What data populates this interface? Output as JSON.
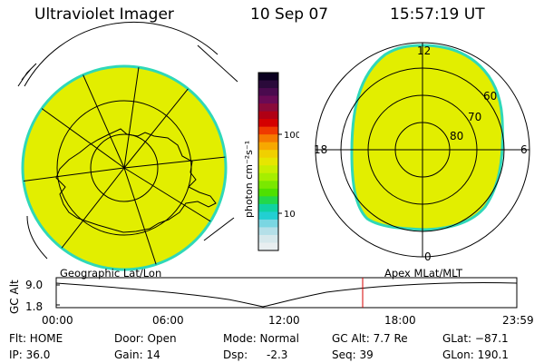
{
  "header": {
    "title": "Ultraviolet Imager",
    "date": "10 Sep 07",
    "time": "15:57:19 UT"
  },
  "colorbar": {
    "unit_label": "photon cm⁻²s⁻¹",
    "ticks": [
      "100",
      "10"
    ],
    "colors": [
      "#0b0020",
      "#2a0a3a",
      "#4a0a4e",
      "#6a0a55",
      "#8a0a3a",
      "#b00014",
      "#d40000",
      "#ef3a00",
      "#f57a00",
      "#f7a800",
      "#f0d000",
      "#e6e600",
      "#c8ee00",
      "#a6ee00",
      "#7ae800",
      "#4ee000",
      "#22d84a",
      "#10d2a2",
      "#22cfd2",
      "#7ad6e2",
      "#b4dfe8",
      "#d6e8ec",
      "#e8eef0"
    ]
  },
  "left_map": {
    "caption": "Geographic Lat/Lon",
    "fill_color": "#e2ee00",
    "edge_color": "#2fd8b8"
  },
  "right_map": {
    "caption": "Apex MLat/MLT",
    "hour_labels": {
      "top": "12",
      "bottom": "0",
      "left": "18",
      "right": "6"
    },
    "lat_labels": [
      "60",
      "70",
      "80"
    ],
    "fill_color": "#e2ee00",
    "edge_color": "#2fd8b8"
  },
  "altitude_plot": {
    "ylabel": "GC Alt",
    "y_ticks": [
      "9.0",
      "1.8"
    ],
    "x_ticks": [
      "00:00",
      "06:00",
      "12:00",
      "18:00",
      "23:59"
    ],
    "current_time_marker": "15:57",
    "marker_color": "#d40000"
  },
  "status": {
    "flt": "Flt: HOME",
    "ip": "IP: 36.0",
    "door": "Door: Open",
    "gain": "Gain: 14",
    "mode": "Mode: Normal",
    "dsp_label": "Dsp:",
    "dsp_value": "-2.3",
    "gc_alt": "GC Alt: 7.7 Re",
    "seq": "Seq: 39",
    "glat": "GLat: −87.1",
    "glon": "GLon: 190.1"
  }
}
